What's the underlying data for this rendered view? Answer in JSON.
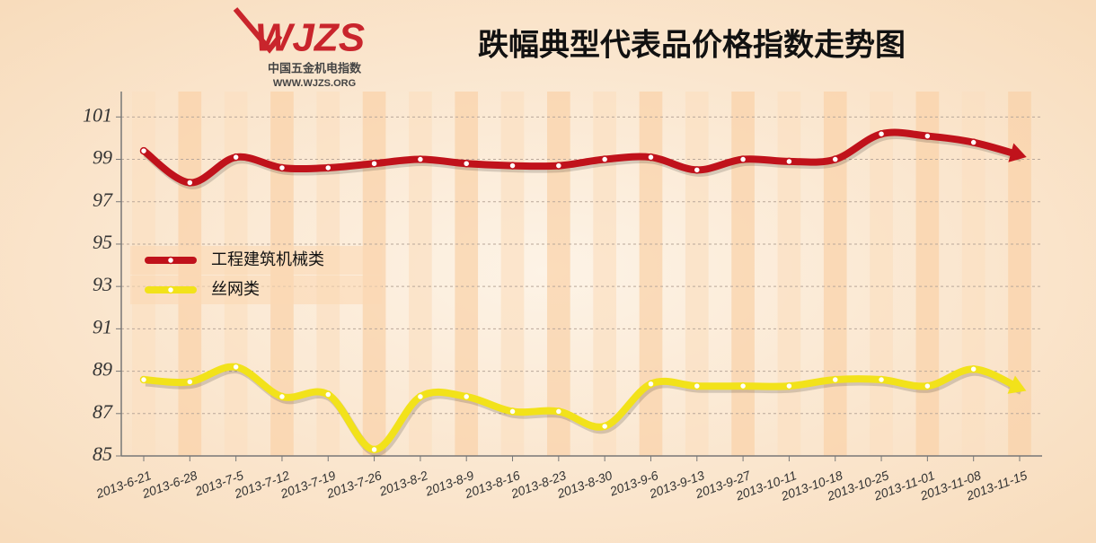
{
  "header": {
    "logo": "WJZS",
    "logo_subtitle": "中国五金机电指数",
    "logo_url": "WWW.WJZS.ORG"
  },
  "chart_data": {
    "type": "line",
    "title": "跌幅典型代表品价格指数走势图",
    "categories": [
      "2013-6-21",
      "2013-6-28",
      "2013-7-5",
      "2013-7-12",
      "2013-7-19",
      "2013-7-26",
      "2013-8-2",
      "2013-8-9",
      "2013-8-16",
      "2013-8-23",
      "2013-8-30",
      "2013-9-6",
      "2013-9-13",
      "2013-9-27",
      "2013-10-11",
      "2013-10-18",
      "2013-10-25",
      "2013-11-01",
      "2013-11-08",
      "2013-11-15"
    ],
    "series": [
      {
        "name": "工程建筑机械类",
        "color": "#c0121b",
        "values": [
          99.4,
          97.9,
          99.1,
          98.6,
          98.6,
          98.8,
          99.0,
          98.8,
          98.7,
          98.7,
          99.0,
          99.1,
          98.5,
          99.0,
          98.9,
          99.0,
          100.2,
          100.1,
          99.8,
          99.2
        ]
      },
      {
        "name": "丝网类",
        "color": "#f2e21a",
        "values": [
          88.6,
          88.5,
          89.2,
          87.8,
          87.9,
          85.3,
          87.8,
          87.8,
          87.1,
          87.1,
          86.4,
          88.4,
          88.3,
          88.3,
          88.3,
          88.6,
          88.6,
          88.3,
          89.1,
          88.2
        ]
      }
    ],
    "ylim": [
      85,
      102.2
    ],
    "yticks": [
      85,
      87,
      89,
      91,
      93,
      95,
      97,
      99,
      101
    ],
    "grid": true,
    "legend": "left"
  }
}
